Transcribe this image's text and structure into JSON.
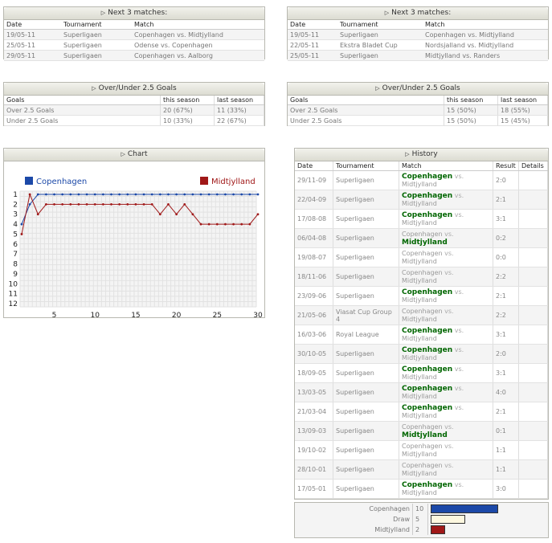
{
  "next_left": {
    "title": "Next 3 matches:",
    "headers": [
      "Date",
      "Tournament",
      "Match"
    ],
    "rows": [
      [
        "19/05-11",
        "Superligaen",
        "Copenhagen vs. Midtjylland"
      ],
      [
        "25/05-11",
        "Superligaen",
        "Odense vs. Copenhagen"
      ],
      [
        "29/05-11",
        "Superligaen",
        "Copenhagen vs. Aalborg"
      ]
    ]
  },
  "next_right": {
    "title": "Next 3 matches:",
    "headers": [
      "Date",
      "Tournament",
      "Match"
    ],
    "rows": [
      [
        "19/05-11",
        "Superligaen",
        "Copenhagen vs. Midtjylland"
      ],
      [
        "22/05-11",
        "Ekstra Bladet Cup",
        "Nordsjalland vs. Midtjylland"
      ],
      [
        "25/05-11",
        "Superligaen",
        "Midtjylland vs. Randers"
      ]
    ]
  },
  "ou_left": {
    "title": "Over/Under 2.5 Goals",
    "headers": [
      "Goals",
      "this season",
      "last season"
    ],
    "rows": [
      [
        "Over 2.5 Goals",
        "20 (67%)",
        "11 (33%)"
      ],
      [
        "Under 2.5 Goals",
        "10 (33%)",
        "22 (67%)"
      ]
    ]
  },
  "ou_right": {
    "title": "Over/Under 2.5 Goals",
    "headers": [
      "Goals",
      "this season",
      "last season"
    ],
    "rows": [
      [
        "Over 2.5 Goals",
        "15 (50%)",
        "18 (55%)"
      ],
      [
        "Under 2.5 Goals",
        "15 (50%)",
        "15 (45%)"
      ]
    ]
  },
  "chart_panel": {
    "title": "Chart"
  },
  "chart_data": {
    "type": "line",
    "legend": [
      "Copenhagen",
      "Midtjylland"
    ],
    "colors": {
      "Copenhagen": "#1c49a8",
      "Midtjylland": "#a01818"
    },
    "x": [
      1,
      2,
      3,
      4,
      5,
      6,
      7,
      8,
      9,
      10,
      11,
      12,
      13,
      14,
      15,
      16,
      17,
      18,
      19,
      20,
      21,
      22,
      23,
      24,
      25,
      26,
      27,
      28,
      29,
      30
    ],
    "x_ticks": [
      5,
      10,
      15,
      20,
      25,
      30
    ],
    "y_ticks": [
      1,
      2,
      3,
      4,
      5,
      6,
      7,
      8,
      9,
      10,
      11,
      12
    ],
    "ylim": [
      1,
      12
    ],
    "y_inverted": true,
    "series": [
      {
        "name": "Copenhagen",
        "values": [
          4,
          2,
          1,
          1,
          1,
          1,
          1,
          1,
          1,
          1,
          1,
          1,
          1,
          1,
          1,
          1,
          1,
          1,
          1,
          1,
          1,
          1,
          1,
          1,
          1,
          1,
          1,
          1,
          1,
          1
        ]
      },
      {
        "name": "Midtjylland",
        "values": [
          5,
          1,
          3,
          2,
          2,
          2,
          2,
          2,
          2,
          2,
          2,
          2,
          2,
          2,
          2,
          2,
          2,
          3,
          2,
          3,
          2,
          3,
          4,
          4,
          4,
          4,
          4,
          4,
          4,
          3
        ]
      }
    ]
  },
  "history": {
    "title": "History",
    "headers": [
      "Date",
      "Tournament",
      "Match",
      "Result",
      "Details"
    ],
    "vs": "vs.",
    "rows": [
      {
        "date": "29/11-09",
        "tour": "Superligaen",
        "home": "Copenhagen",
        "away": "Midtjylland",
        "result": "2:0",
        "w": "home"
      },
      {
        "date": "22/04-09",
        "tour": "Superligaen",
        "home": "Copenhagen",
        "away": "Midtjylland",
        "result": "2:1",
        "w": "home"
      },
      {
        "date": "17/08-08",
        "tour": "Superligaen",
        "home": "Copenhagen",
        "away": "Midtjylland",
        "result": "3:1",
        "w": "home"
      },
      {
        "date": "06/04-08",
        "tour": "Superligaen",
        "home": "Copenhagen",
        "away": "Midtjylland",
        "result": "0:2",
        "w": "away"
      },
      {
        "date": "19/08-07",
        "tour": "Superligaen",
        "home": "Copenhagen",
        "away": "Midtjylland",
        "result": "0:0",
        "w": "none"
      },
      {
        "date": "18/11-06",
        "tour": "Superligaen",
        "home": "Copenhagen",
        "away": "Midtjylland",
        "result": "2:2",
        "w": "none"
      },
      {
        "date": "23/09-06",
        "tour": "Superligaen",
        "home": "Copenhagen",
        "away": "Midtjylland",
        "result": "2:1",
        "w": "home"
      },
      {
        "date": "21/05-06",
        "tour": "Viasat Cup Group 4",
        "home": "Copenhagen",
        "away": "Midtjylland",
        "result": "2:2",
        "w": "none"
      },
      {
        "date": "16/03-06",
        "tour": "Royal League",
        "home": "Copenhagen",
        "away": "Midtjylland",
        "result": "3:1",
        "w": "home"
      },
      {
        "date": "30/10-05",
        "tour": "Superligaen",
        "home": "Copenhagen",
        "away": "Midtjylland",
        "result": "2:0",
        "w": "home"
      },
      {
        "date": "18/09-05",
        "tour": "Superligaen",
        "home": "Copenhagen",
        "away": "Midtjylland",
        "result": "3:1",
        "w": "home"
      },
      {
        "date": "13/03-05",
        "tour": "Superligaen",
        "home": "Copenhagen",
        "away": "Midtjylland",
        "result": "4:0",
        "w": "home"
      },
      {
        "date": "21/03-04",
        "tour": "Superligaen",
        "home": "Copenhagen",
        "away": "Midtjylland",
        "result": "2:1",
        "w": "home"
      },
      {
        "date": "13/09-03",
        "tour": "Superligaen",
        "home": "Copenhagen",
        "away": "Midtjylland",
        "result": "0:1",
        "w": "away"
      },
      {
        "date": "19/10-02",
        "tour": "Superligaen",
        "home": "Copenhagen",
        "away": "Midtjylland",
        "result": "1:1",
        "w": "none"
      },
      {
        "date": "28/10-01",
        "tour": "Superligaen",
        "home": "Copenhagen",
        "away": "Midtjylland",
        "result": "1:1",
        "w": "none"
      },
      {
        "date": "17/05-01",
        "tour": "Superligaen",
        "home": "Copenhagen",
        "away": "Midtjylland",
        "result": "3:0",
        "w": "home"
      }
    ]
  },
  "summary": [
    {
      "label": "Copenhagen",
      "count": "10",
      "value": 10,
      "color": "#1c49a8"
    },
    {
      "label": "Draw",
      "count": "5",
      "value": 5,
      "color": "#fdf8e0"
    },
    {
      "label": "Midtjylland",
      "count": "2",
      "value": 2,
      "color": "#a01818"
    }
  ]
}
